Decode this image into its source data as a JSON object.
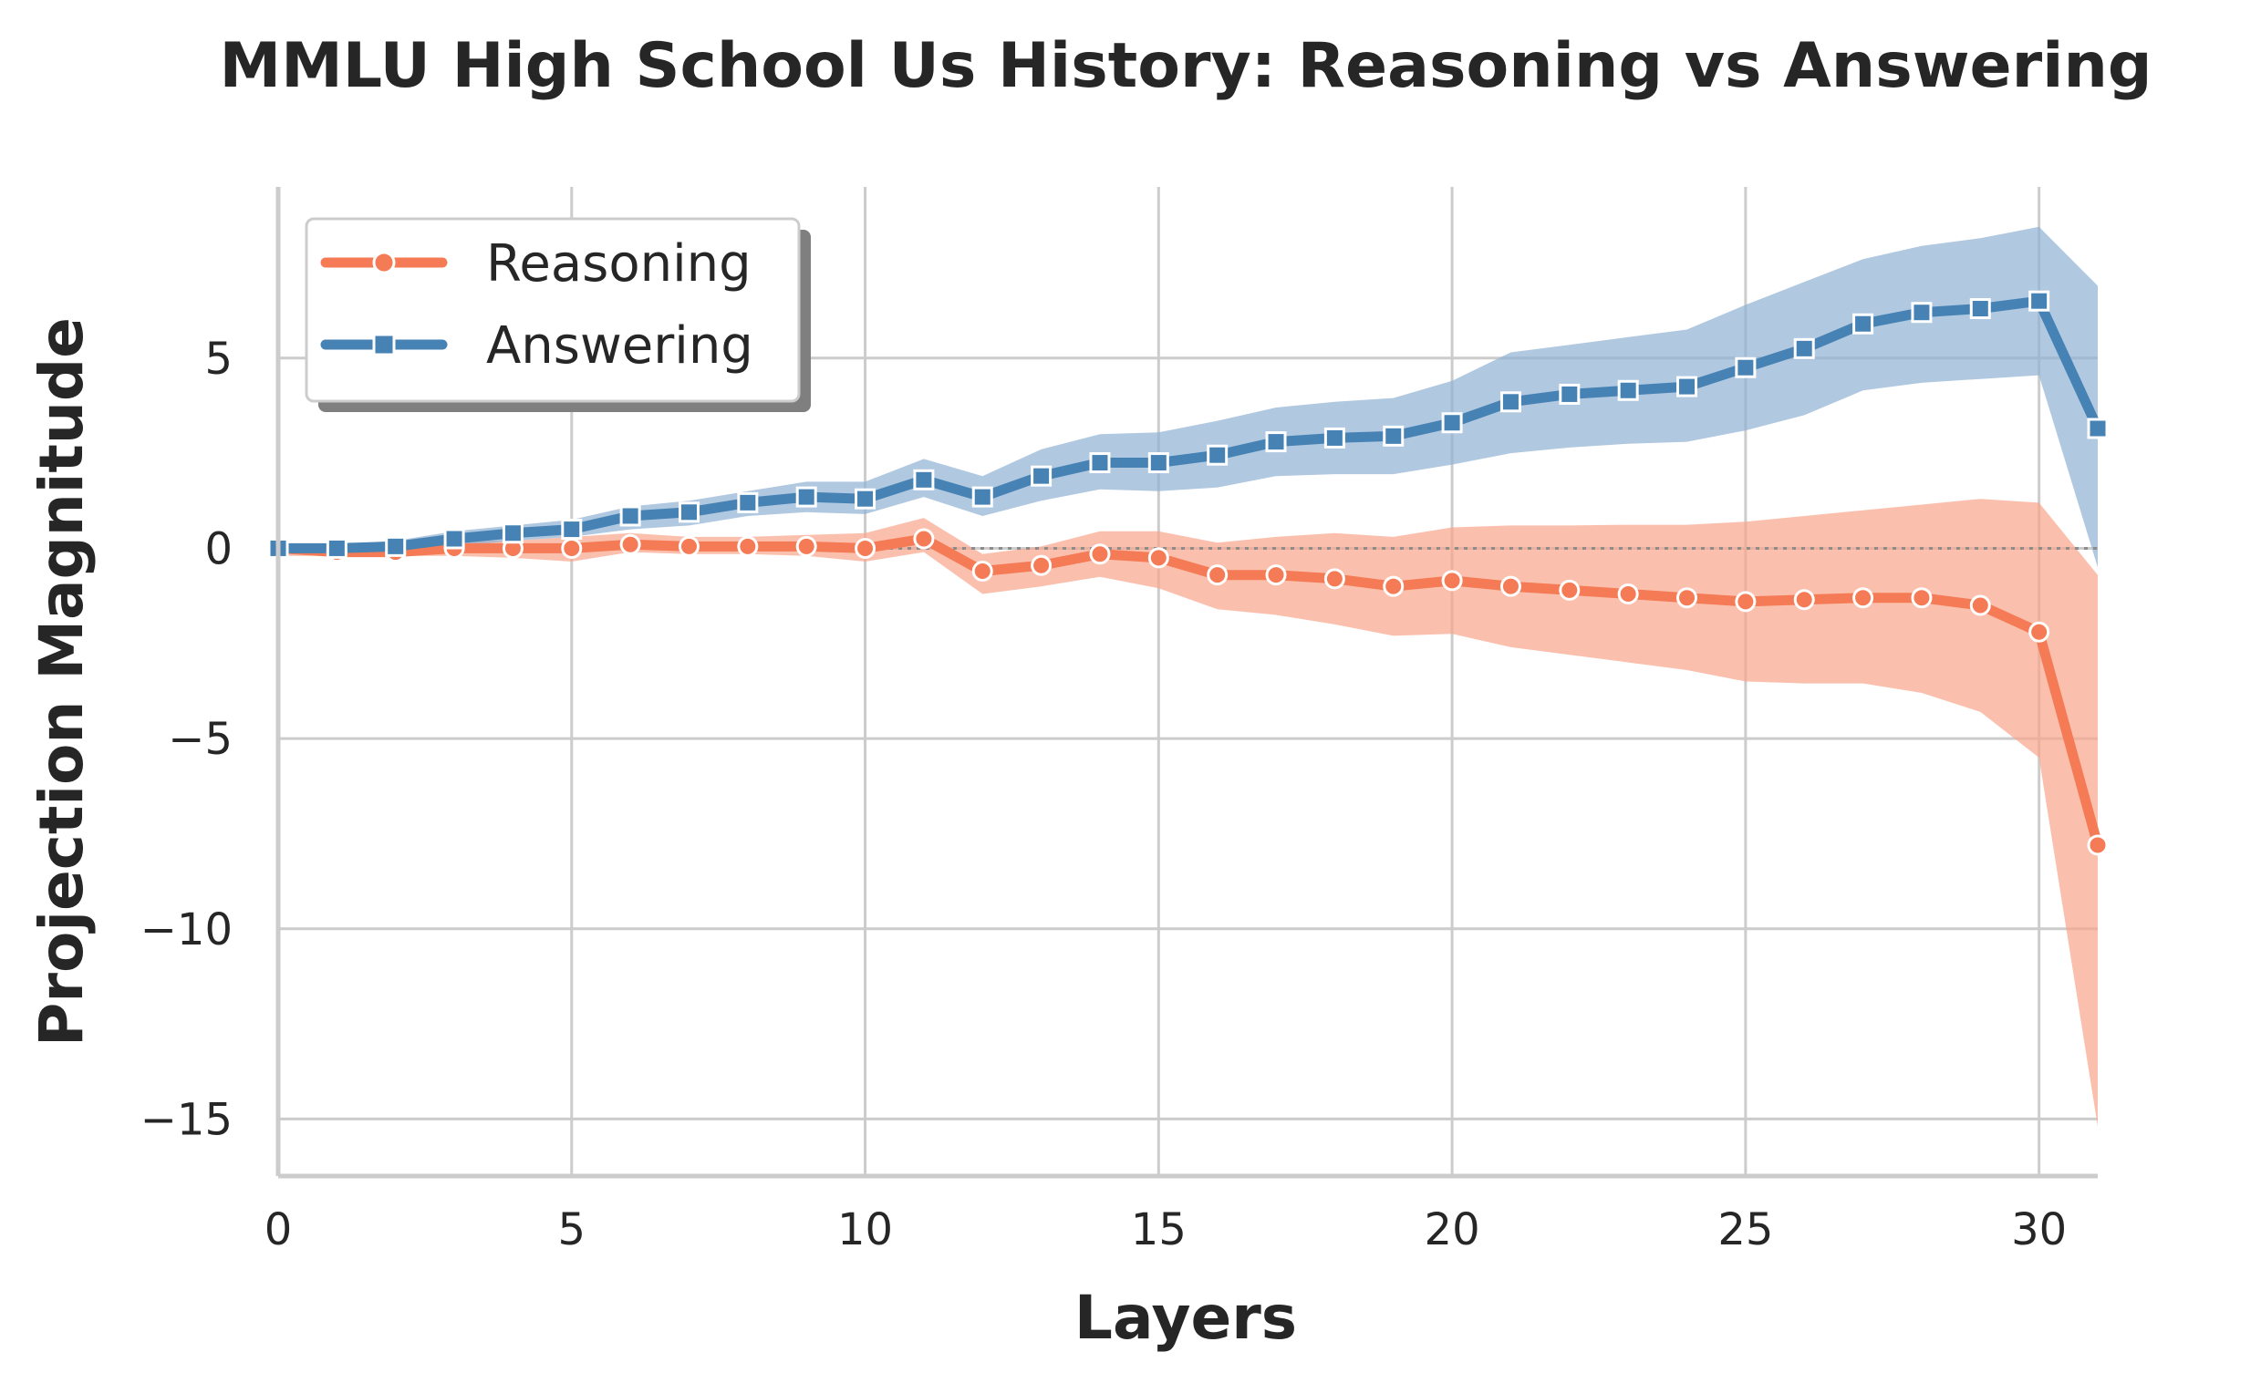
{
  "chart_data": {
    "type": "line",
    "title": "MMLU High School Us History: Reasoning vs Answering",
    "xlabel": "Layers",
    "ylabel": "Projection Magnitude",
    "xlim": [
      0,
      31
    ],
    "ylim": [
      -16.5,
      9.5
    ],
    "xticks": [
      0,
      5,
      10,
      15,
      20,
      25,
      30
    ],
    "xtick_labels": [
      "0",
      "5",
      "10",
      "15",
      "20",
      "25",
      "30"
    ],
    "yticks": [
      5,
      0,
      -5,
      -10,
      -15
    ],
    "ytick_labels": [
      "5",
      "0",
      "−5",
      "−10",
      "−15"
    ],
    "grid": true,
    "zero_reference_line": 0,
    "legend_position": "top-left",
    "x": [
      0,
      1,
      2,
      3,
      4,
      5,
      6,
      7,
      8,
      9,
      10,
      11,
      12,
      13,
      14,
      15,
      16,
      17,
      18,
      19,
      20,
      21,
      22,
      23,
      24,
      25,
      26,
      27,
      28,
      29,
      30,
      31
    ],
    "series": [
      {
        "name": "Reasoning",
        "color": "#f47b55",
        "band_color": "#f9a58a",
        "marker": "circle",
        "values": [
          0.0,
          -0.1,
          -0.1,
          0.0,
          0.0,
          0.0,
          0.1,
          0.05,
          0.05,
          0.05,
          0.0,
          0.25,
          -0.6,
          -0.45,
          -0.15,
          -0.25,
          -0.7,
          -0.7,
          -0.8,
          -1.0,
          -0.85,
          -1.0,
          -1.1,
          -1.2,
          -1.3,
          -1.4,
          -1.35,
          -1.3,
          -1.3,
          -1.5,
          -2.2,
          -7.8
        ],
        "lower": [
          -0.2,
          -0.2,
          -0.2,
          -0.2,
          -0.25,
          -0.35,
          -0.1,
          -0.15,
          -0.15,
          -0.2,
          -0.35,
          -0.1,
          -1.2,
          -1.0,
          -0.75,
          -1.05,
          -1.6,
          -1.75,
          -2.0,
          -2.3,
          -2.25,
          -2.6,
          -2.8,
          -3.0,
          -3.2,
          -3.5,
          -3.55,
          -3.55,
          -3.8,
          -4.3,
          -5.5,
          -15.2
        ],
        "upper": [
          0.1,
          0.05,
          0.05,
          0.2,
          0.2,
          0.3,
          0.4,
          0.3,
          0.3,
          0.35,
          0.4,
          0.8,
          -0.15,
          0.05,
          0.45,
          0.45,
          0.15,
          0.3,
          0.4,
          0.3,
          0.55,
          0.6,
          0.6,
          0.62,
          0.62,
          0.7,
          0.85,
          1.0,
          1.15,
          1.3,
          1.2,
          -0.7
        ]
      },
      {
        "name": "Answering",
        "color": "#4682b4",
        "band_color": "#8fb1d3",
        "marker": "square",
        "values": [
          0.0,
          0.0,
          0.05,
          0.25,
          0.4,
          0.5,
          0.85,
          0.95,
          1.2,
          1.35,
          1.3,
          1.8,
          1.35,
          1.9,
          2.25,
          2.25,
          2.45,
          2.8,
          2.9,
          2.95,
          3.3,
          3.85,
          4.05,
          4.15,
          4.25,
          4.75,
          5.25,
          5.9,
          6.2,
          6.3,
          6.5,
          3.15
        ],
        "lower": [
          -0.05,
          -0.05,
          -0.05,
          0.05,
          0.2,
          0.3,
          0.5,
          0.6,
          0.85,
          0.95,
          0.9,
          1.35,
          0.85,
          1.25,
          1.55,
          1.5,
          1.6,
          1.9,
          1.95,
          1.95,
          2.2,
          2.5,
          2.65,
          2.75,
          2.8,
          3.1,
          3.5,
          4.15,
          4.35,
          4.45,
          4.55,
          -0.5
        ],
        "upper": [
          0.05,
          0.1,
          0.2,
          0.45,
          0.6,
          0.75,
          1.1,
          1.25,
          1.5,
          1.75,
          1.75,
          2.35,
          1.9,
          2.6,
          3.0,
          3.05,
          3.35,
          3.7,
          3.85,
          3.95,
          4.4,
          5.15,
          5.35,
          5.55,
          5.75,
          6.4,
          7.0,
          7.6,
          7.95,
          8.15,
          8.45,
          6.9
        ]
      }
    ]
  }
}
